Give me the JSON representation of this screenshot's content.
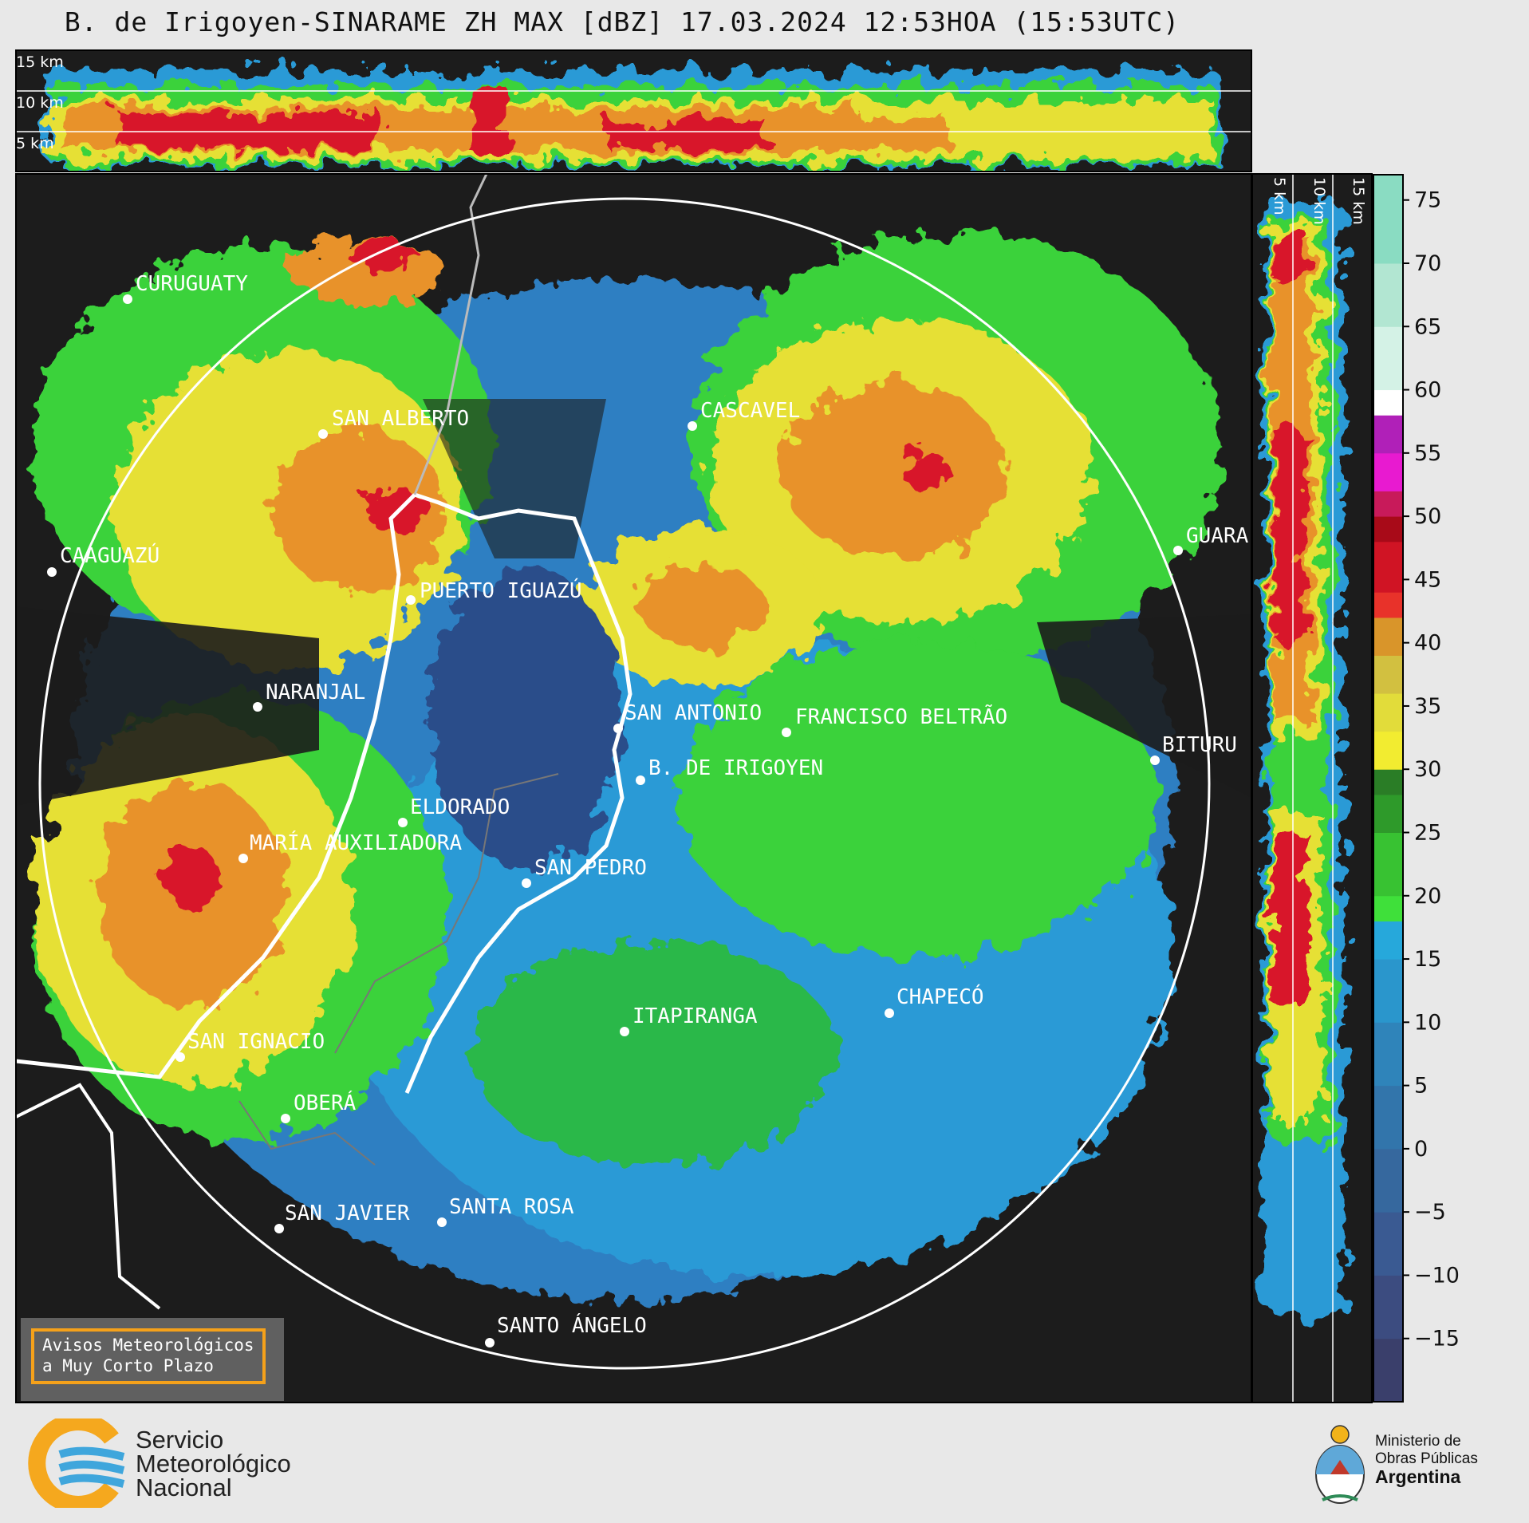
{
  "title": "B. de Irigoyen-SINARAME ZH MAX [dBZ] 17.03.2024 12:53HOA (15:53UTC)",
  "top_panel": {
    "height_labels": [
      "15 km",
      "10 km",
      "5 km"
    ]
  },
  "side_panel": {
    "height_labels": [
      "5 km",
      "10 km",
      "15 km"
    ]
  },
  "colorbar": {
    "ticks": [
      "75",
      "70",
      "65",
      "60",
      "55",
      "50",
      "45",
      "40",
      "35",
      "30",
      "25",
      "20",
      "15",
      "10",
      "5",
      "0",
      "−5",
      "−10",
      "−15"
    ],
    "tick_values": [
      75,
      70,
      65,
      60,
      55,
      50,
      45,
      40,
      35,
      30,
      25,
      20,
      15,
      10,
      5,
      0,
      -5,
      -10,
      -15
    ],
    "range": [
      -20,
      77
    ]
  },
  "cities": [
    {
      "name": "CURUGUATY"
    },
    {
      "name": "SAN ALBERTO"
    },
    {
      "name": "CASCAVEL"
    },
    {
      "name": "CAAGUAZÚ"
    },
    {
      "name": "PUERTO IGUAZÚ"
    },
    {
      "name": "GUARA"
    },
    {
      "name": "NARANJAL"
    },
    {
      "name": "SAN ANTONIO"
    },
    {
      "name": "FRANCISCO BELTRÃO"
    },
    {
      "name": "B. DE IRIGOYEN"
    },
    {
      "name": "BITURU"
    },
    {
      "name": "ELDORADO"
    },
    {
      "name": "MARÍA AUXILIADORA"
    },
    {
      "name": "SAN PEDRO"
    },
    {
      "name": "CHAPECÓ"
    },
    {
      "name": "ITAPIRANGA"
    },
    {
      "name": "SAN IGNACIO"
    },
    {
      "name": "OBERÁ"
    },
    {
      "name": "SAN JAVIER"
    },
    {
      "name": "SANTA ROSA"
    },
    {
      "name": "SANTO ÁNGELO"
    }
  ],
  "notice": {
    "line1": "Avisos Meteorológicos",
    "line2": "a Muy Corto Plazo"
  },
  "logo_smn": {
    "line1": "Servicio",
    "line2": "Meteorológico",
    "line3": "Nacional"
  },
  "logo_ministry": {
    "line1": "Ministerio de",
    "line2": "Obras Públicas",
    "line3": "Argentina"
  }
}
